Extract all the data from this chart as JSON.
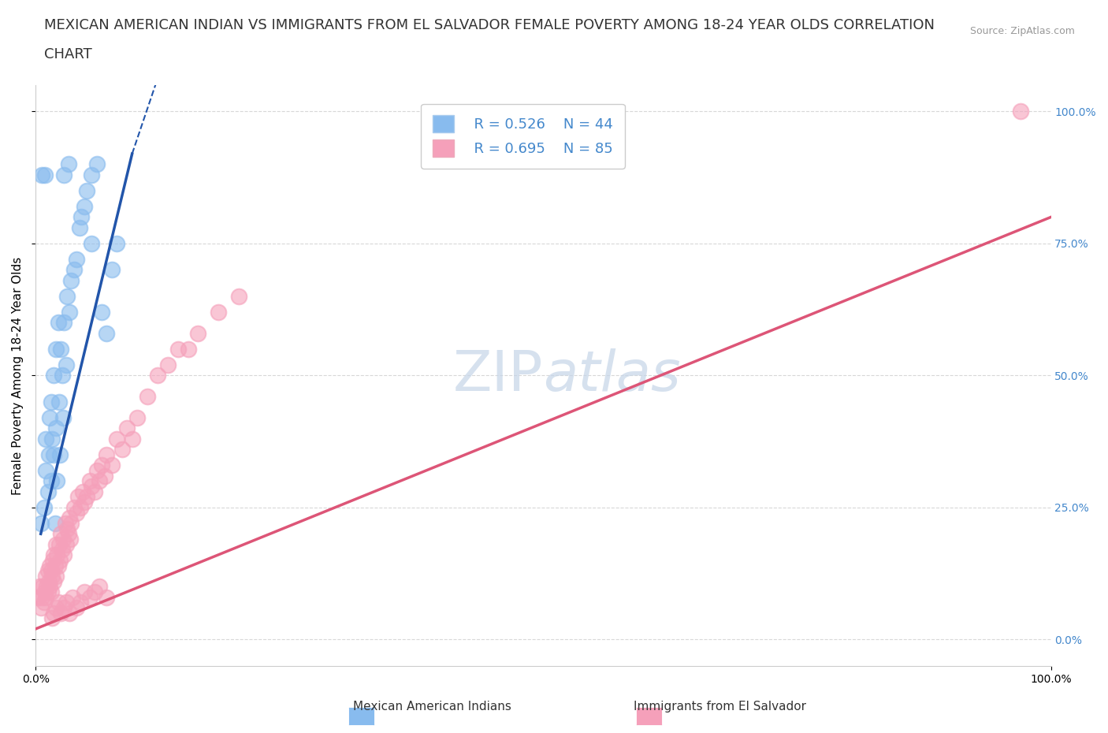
{
  "title_line1": "MEXICAN AMERICAN INDIAN VS IMMIGRANTS FROM EL SALVADOR FEMALE POVERTY AMONG 18-24 YEAR OLDS CORRELATION",
  "title_line2": "CHART",
  "source": "Source: ZipAtlas.com",
  "ylabel": "Female Poverty Among 18-24 Year Olds",
  "xlim": [
    0,
    1.0
  ],
  "ylim": [
    -0.05,
    1.05
  ],
  "ytick_positions": [
    0.0,
    0.25,
    0.5,
    0.75,
    1.0
  ],
  "watermark": "ZIPatlas",
  "legend_r1": "R = 0.526",
  "legend_n1": "N = 44",
  "legend_r2": "R = 0.695",
  "legend_n2": "N = 85",
  "color_blue": "#88BBEE",
  "color_pink": "#F5A0BA",
  "color_blue_line": "#2255AA",
  "color_pink_line": "#DD5577",
  "legend_label1": "Mexican American Indians",
  "legend_label2": "Immigrants from El Salvador",
  "blue_scatter_x": [
    0.005,
    0.008,
    0.01,
    0.01,
    0.012,
    0.013,
    0.014,
    0.015,
    0.015,
    0.016,
    0.018,
    0.018,
    0.019,
    0.02,
    0.02,
    0.021,
    0.022,
    0.023,
    0.024,
    0.025,
    0.026,
    0.027,
    0.028,
    0.03,
    0.031,
    0.033,
    0.035,
    0.038,
    0.04,
    0.043,
    0.045,
    0.048,
    0.05,
    0.055,
    0.06,
    0.065,
    0.07,
    0.075,
    0.08,
    0.055,
    0.028,
    0.032,
    0.006,
    0.009
  ],
  "blue_scatter_y": [
    0.22,
    0.25,
    0.32,
    0.38,
    0.28,
    0.35,
    0.42,
    0.3,
    0.45,
    0.38,
    0.5,
    0.35,
    0.22,
    0.55,
    0.4,
    0.3,
    0.6,
    0.45,
    0.35,
    0.55,
    0.5,
    0.42,
    0.6,
    0.52,
    0.65,
    0.62,
    0.68,
    0.7,
    0.72,
    0.78,
    0.8,
    0.82,
    0.85,
    0.88,
    0.9,
    0.62,
    0.58,
    0.7,
    0.75,
    0.75,
    0.88,
    0.9,
    0.88,
    0.88
  ],
  "pink_scatter_x": [
    0.002,
    0.004,
    0.005,
    0.006,
    0.007,
    0.008,
    0.009,
    0.01,
    0.01,
    0.011,
    0.012,
    0.012,
    0.013,
    0.014,
    0.014,
    0.015,
    0.015,
    0.016,
    0.017,
    0.018,
    0.018,
    0.019,
    0.02,
    0.02,
    0.021,
    0.022,
    0.023,
    0.024,
    0.025,
    0.026,
    0.027,
    0.028,
    0.029,
    0.03,
    0.031,
    0.032,
    0.033,
    0.034,
    0.035,
    0.038,
    0.04,
    0.042,
    0.044,
    0.046,
    0.048,
    0.05,
    0.053,
    0.055,
    0.058,
    0.06,
    0.063,
    0.065,
    0.068,
    0.07,
    0.075,
    0.08,
    0.085,
    0.09,
    0.095,
    0.1,
    0.11,
    0.12,
    0.13,
    0.14,
    0.15,
    0.16,
    0.18,
    0.2,
    0.016,
    0.018,
    0.02,
    0.022,
    0.025,
    0.028,
    0.03,
    0.033,
    0.036,
    0.04,
    0.044,
    0.048,
    0.053,
    0.058,
    0.063,
    0.07,
    0.97
  ],
  "pink_scatter_y": [
    0.08,
    0.1,
    0.06,
    0.08,
    0.1,
    0.07,
    0.09,
    0.08,
    0.12,
    0.1,
    0.09,
    0.13,
    0.11,
    0.1,
    0.14,
    0.09,
    0.13,
    0.12,
    0.15,
    0.11,
    0.16,
    0.14,
    0.12,
    0.18,
    0.16,
    0.14,
    0.18,
    0.15,
    0.2,
    0.17,
    0.19,
    0.16,
    0.22,
    0.18,
    0.21,
    0.2,
    0.23,
    0.19,
    0.22,
    0.25,
    0.24,
    0.27,
    0.25,
    0.28,
    0.26,
    0.27,
    0.3,
    0.29,
    0.28,
    0.32,
    0.3,
    0.33,
    0.31,
    0.35,
    0.33,
    0.38,
    0.36,
    0.4,
    0.38,
    0.42,
    0.46,
    0.5,
    0.52,
    0.55,
    0.55,
    0.58,
    0.62,
    0.65,
    0.04,
    0.05,
    0.06,
    0.07,
    0.05,
    0.06,
    0.07,
    0.05,
    0.08,
    0.06,
    0.07,
    0.09,
    0.08,
    0.09,
    0.1,
    0.08,
    1.0
  ],
  "blue_line_x": [
    0.005,
    0.095
  ],
  "blue_line_y": [
    0.2,
    0.92
  ],
  "pink_line_x": [
    0.0,
    1.0
  ],
  "pink_line_y": [
    0.02,
    0.8
  ],
  "background_color": "#ffffff",
  "grid_color": "#d8d8d8",
  "title_fontsize": 13,
  "axis_label_fontsize": 11,
  "tick_fontsize": 10,
  "watermark_color": "#c5d5e8",
  "watermark_fontsize": 52,
  "right_ytick_color": "#4488cc",
  "legend_text_color": "#4488cc"
}
